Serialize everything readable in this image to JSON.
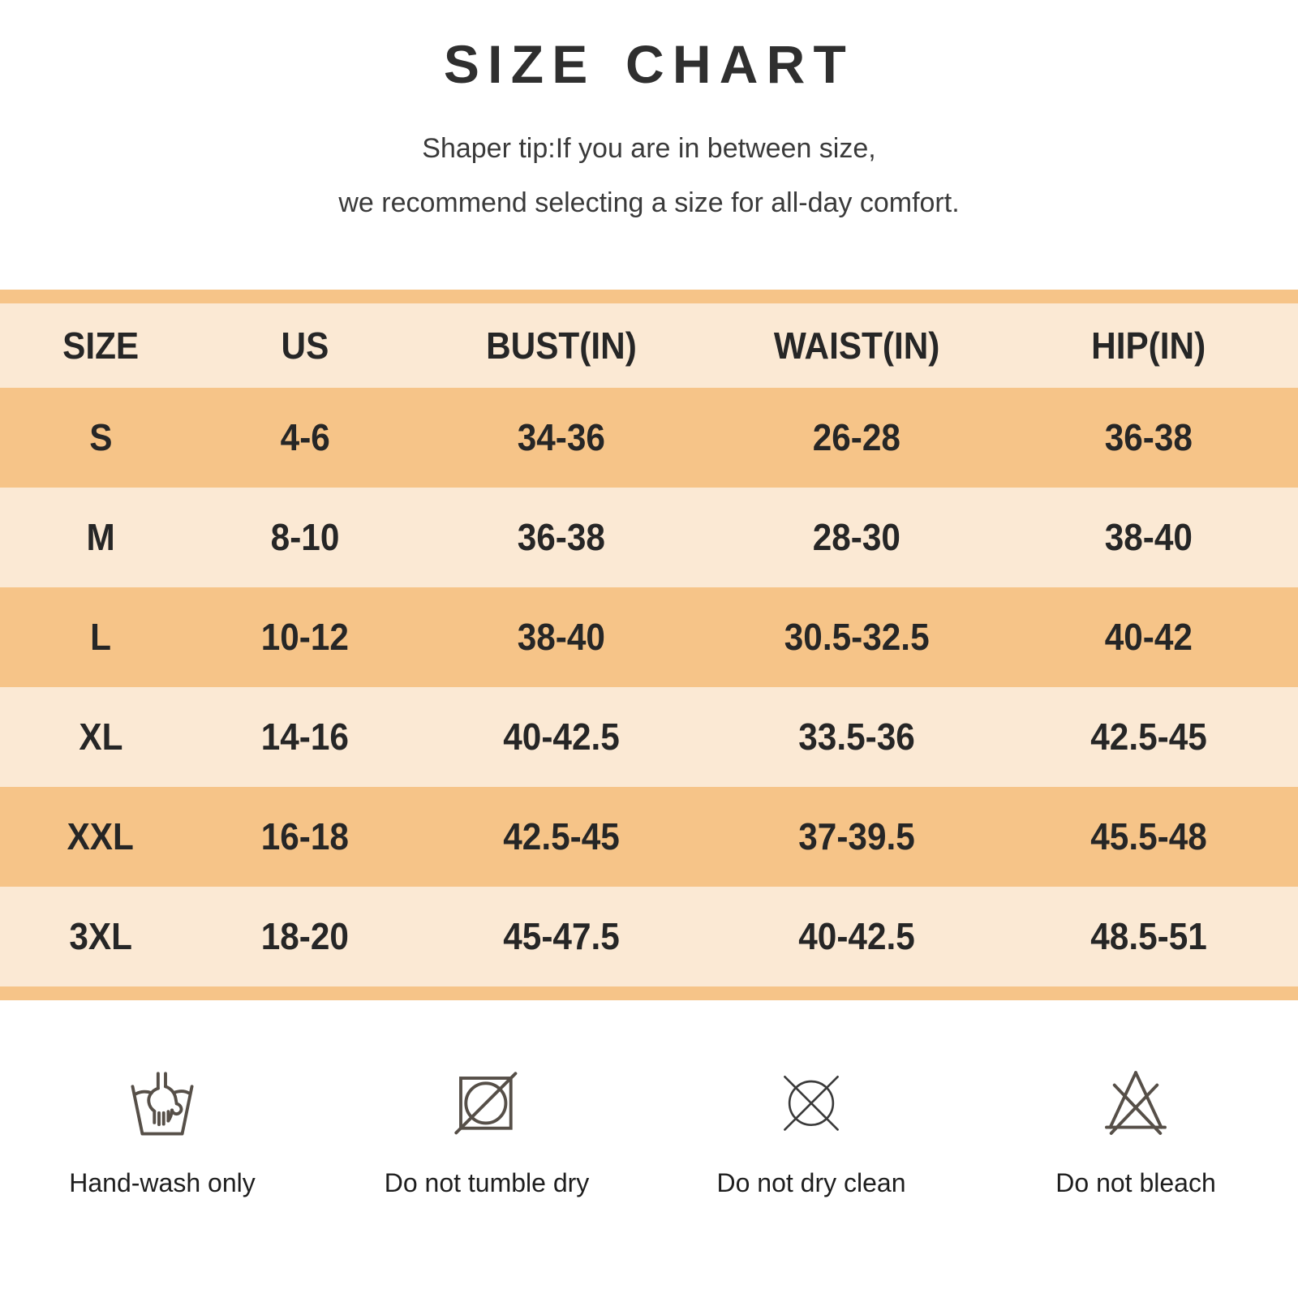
{
  "title": "SIZE CHART",
  "subtitle_line1": "Shaper tip:If you are in between size,",
  "subtitle_line2": "we recommend selecting a size for all-day comfort.",
  "chart_data": {
    "type": "table",
    "title": "SIZE CHART",
    "columns": [
      "SIZE",
      "US",
      "BUST(IN)",
      "WAIST(IN)",
      "HIP(IN)"
    ],
    "rows": [
      [
        "S",
        "4-6",
        "34-36",
        "26-28",
        "36-38"
      ],
      [
        "M",
        "8-10",
        "36-38",
        "28-30",
        "38-40"
      ],
      [
        "L",
        "10-12",
        "38-40",
        "30.5-32.5",
        "40-42"
      ],
      [
        "XL",
        "14-16",
        "40-42.5",
        "33.5-36",
        "42.5-45"
      ],
      [
        "XXL",
        "16-18",
        "42.5-45",
        "37-39.5",
        "45.5-48"
      ],
      [
        "3XL",
        "18-20",
        "45-47.5",
        "40-42.5",
        "48.5-51"
      ]
    ],
    "layout_hints": {
      "striped": true,
      "stripe_order": "orange-first",
      "header_band": true
    }
  },
  "care_icons": [
    {
      "icon": "hand-wash-icon",
      "label": "Hand-wash only"
    },
    {
      "icon": "do-not-tumble-dry-icon",
      "label": "Do not tumble dry"
    },
    {
      "icon": "do-not-dry-clean-icon",
      "label": "Do not dry clean"
    },
    {
      "icon": "do-not-bleach-icon",
      "label": "Do not bleach"
    }
  ],
  "colors": {
    "row_orange": "#f6c488",
    "row_light": "#fbe9d4",
    "band_orange": "#f6c488",
    "title_text": "#2f2f2f",
    "table_text": "#262626",
    "icon_stroke": "#564f48",
    "icon_stroke_thin": "#3a3a3a"
  }
}
